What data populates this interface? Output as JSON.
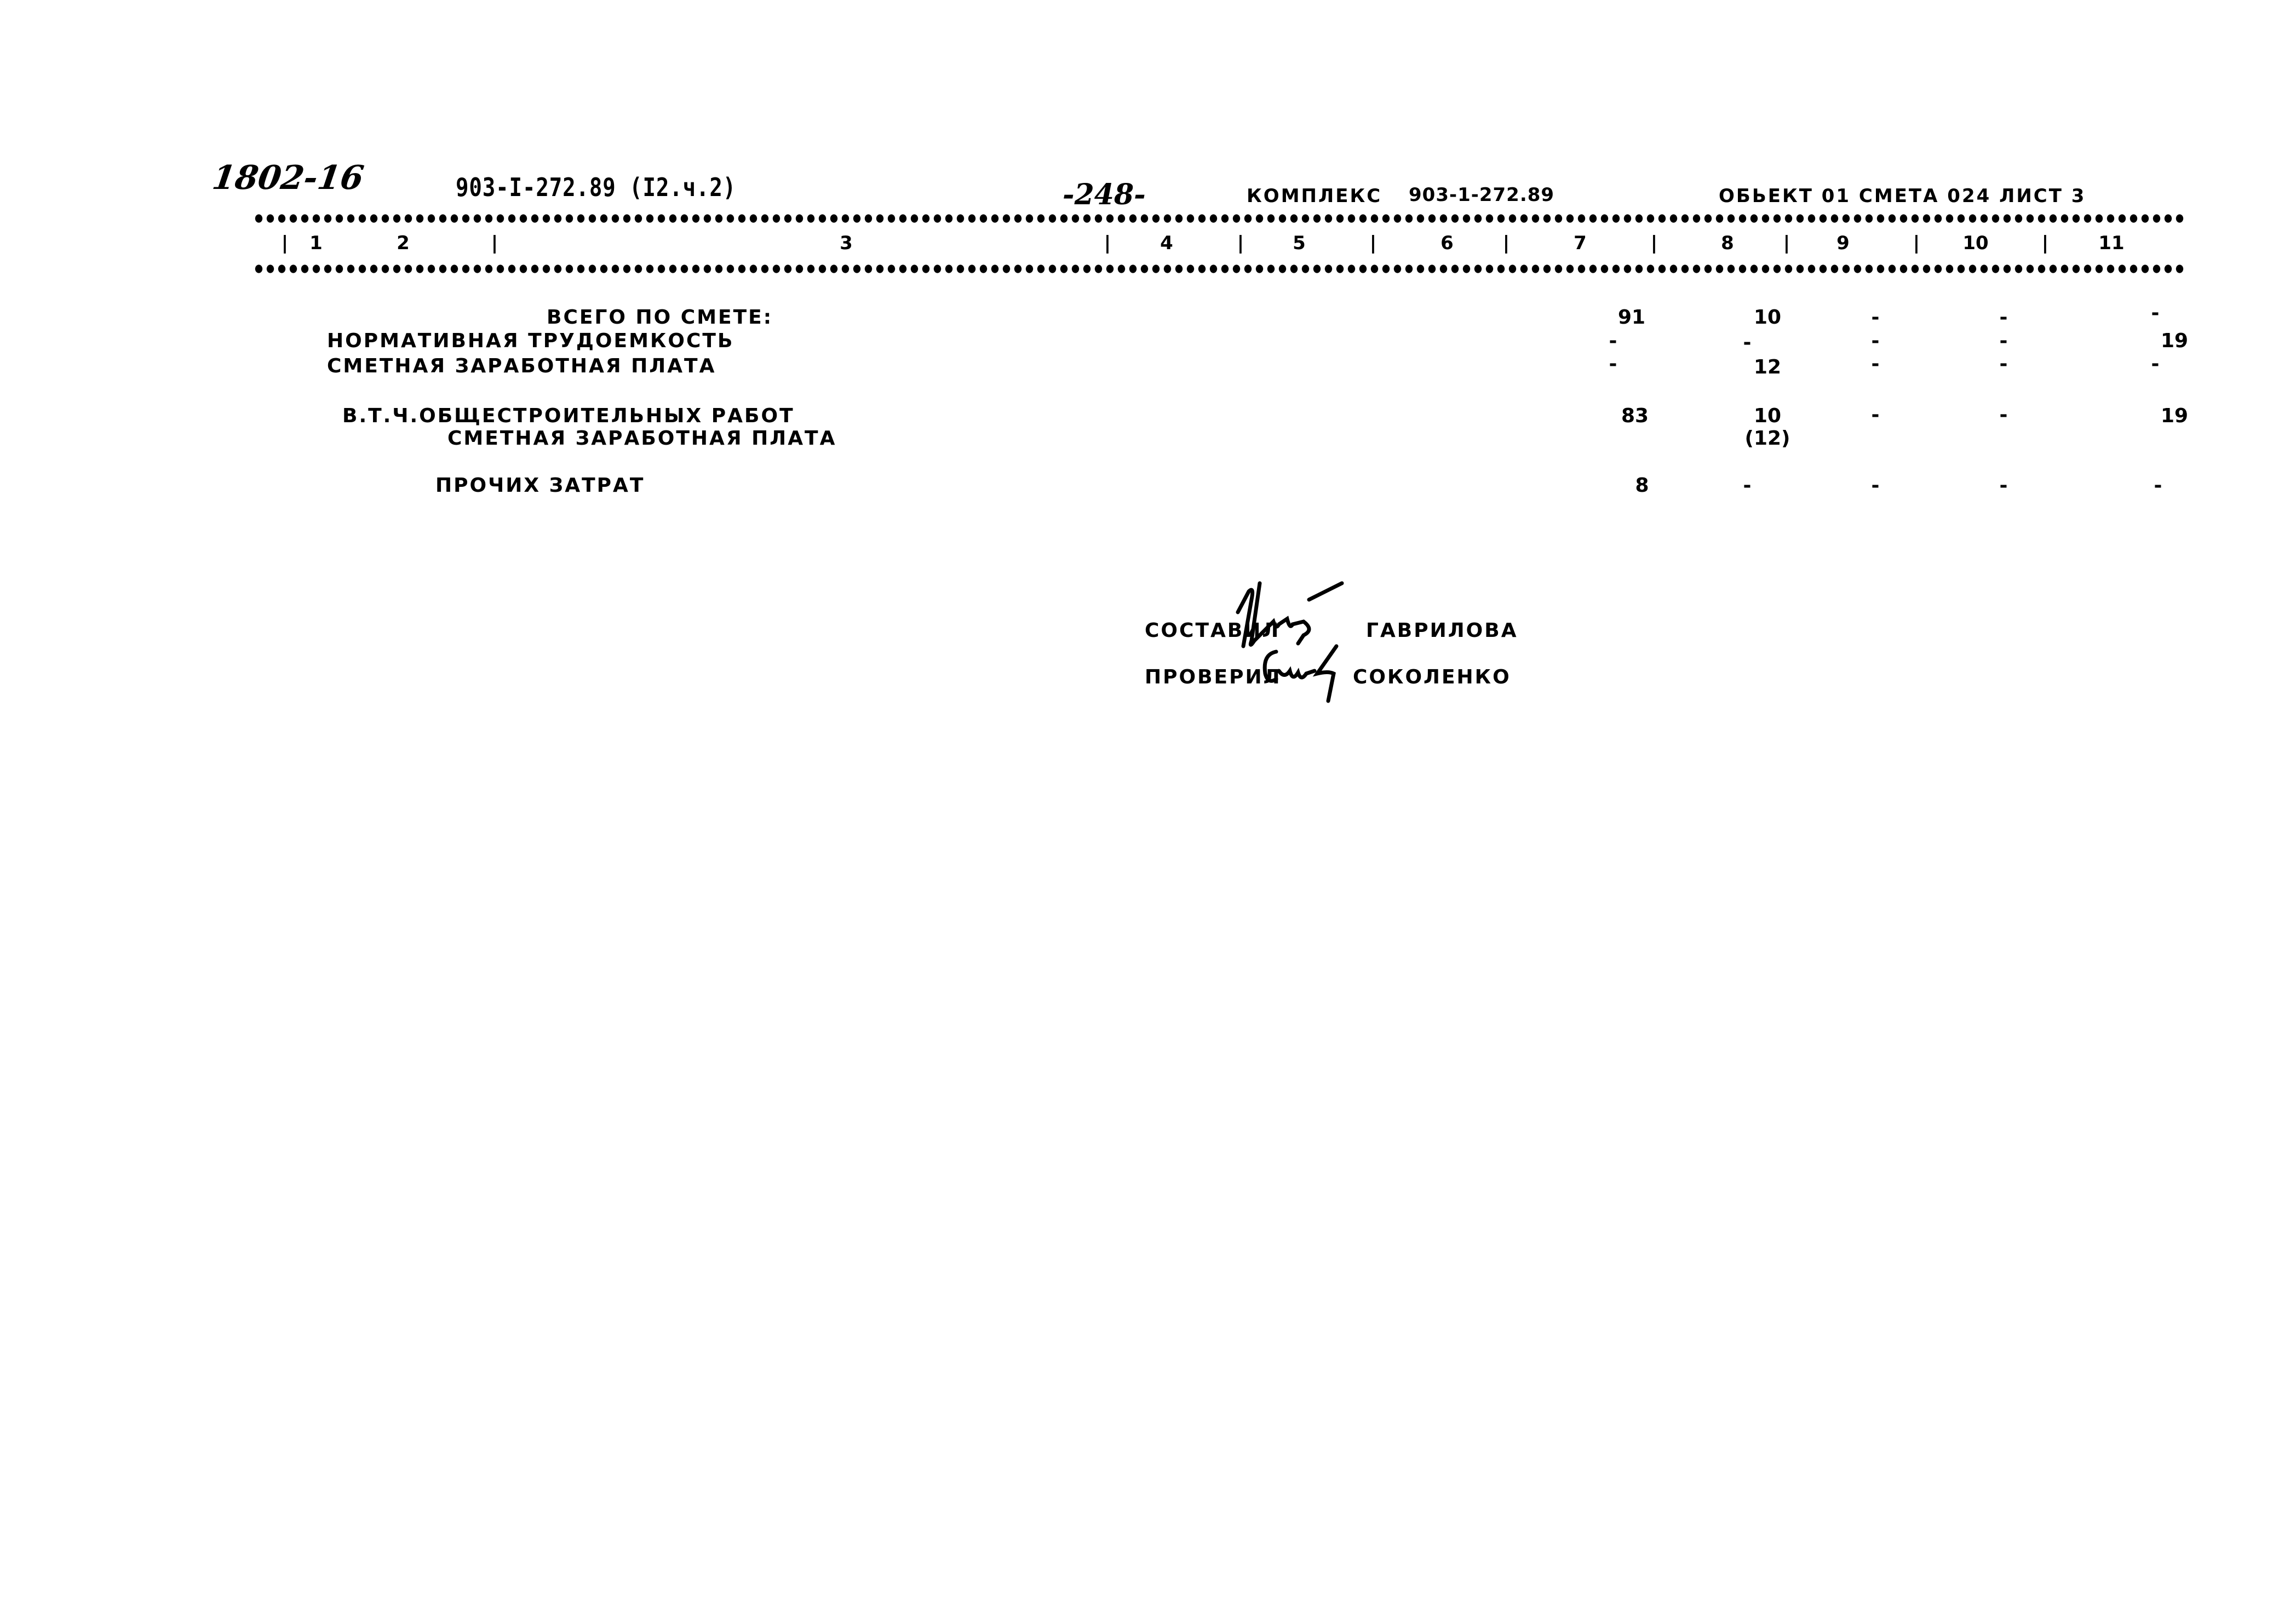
{
  "header": {
    "handwritten_code": "1802-16",
    "project_code": "903-I-272.89 (I2.ч.2)",
    "page_number": "-248-",
    "complex_label": "КОМПЛЕКС",
    "complex_code": "903-1-272.89",
    "object_sheet": "ОБЬЕКТ 01 СМЕТА 024 ЛИСТ 3"
  },
  "columns": [
    "1",
    "2",
    "3",
    "4",
    "5",
    "6",
    "7",
    "8",
    "9",
    "10",
    "11"
  ],
  "rows": [
    {
      "label": "ВСЕГО ПО СМЕТЕ:",
      "c7": "91",
      "c8": "10",
      "c9": "-",
      "c10": "-",
      "c11": "-"
    },
    {
      "label": "НОРМАТИВНАЯ ТРУДОЕМКОСТЬ",
      "c7": "-",
      "c8": "-",
      "c9": "-",
      "c10": "-",
      "c11": "19"
    },
    {
      "label": "СМЕТНАЯ ЗАРАБОТНАЯ ПЛАТА",
      "c7": "-",
      "c8": "12",
      "c9": "-",
      "c10": "-",
      "c11": "-"
    },
    {
      "label": "В.Т.Ч.ОБЩЕСТРОИТЕЛЬНЫХ РАБОТ",
      "c7": "83",
      "c8": "10",
      "c9": "-",
      "c10": "-",
      "c11": "19"
    },
    {
      "label": "СМЕТНАЯ ЗАРАБОТНАЯ ПЛАТА",
      "c8": "(12)"
    },
    {
      "label": "ПРОЧИХ ЗАТРАТ",
      "c7": "8",
      "c8": "-",
      "c9": "-",
      "c10": "-",
      "c11": "-"
    }
  ],
  "signatures": {
    "compiled_label": "СОСТАВИЛ",
    "compiled_name": "ГАВРИЛОВА",
    "checked_label": "ПРОВЕРИЛ",
    "checked_name": "СОКОЛЕНКО"
  }
}
